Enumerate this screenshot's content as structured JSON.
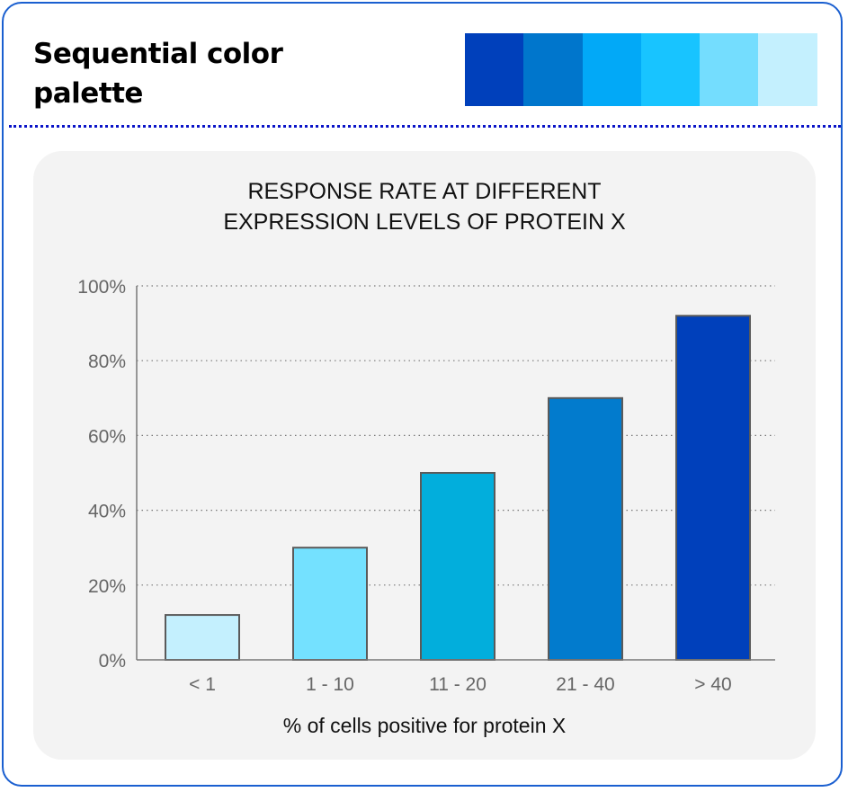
{
  "heading": "Sequential color palette",
  "palette": [
    "#0040bb",
    "#0076cc",
    "#02a9f7",
    "#18c4ff",
    "#74ddfe",
    "#c4f0fe"
  ],
  "chart_data": {
    "type": "bar",
    "title": [
      "RESPONSE RATE AT DIFFERENT",
      "EXPRESSION LEVELS OF PROTEIN X"
    ],
    "xlabel": "% of cells positive for protein X",
    "ylabel": "",
    "categories": [
      "< 1",
      "1 - 10",
      "11 - 20",
      "21 - 40",
      "> 40"
    ],
    "values": [
      12,
      30,
      50,
      70,
      92
    ],
    "colors": [
      "#c4f0fe",
      "#74e1ff",
      "#02aedc",
      "#027bcd",
      "#0040bb"
    ],
    "ylim": [
      0,
      100
    ],
    "yticks": [
      0,
      20,
      40,
      60,
      80,
      100
    ],
    "ytick_labels": [
      "0%",
      "20%",
      "40%",
      "60%",
      "80%",
      "100%"
    ],
    "grid": true,
    "legend": "none"
  }
}
